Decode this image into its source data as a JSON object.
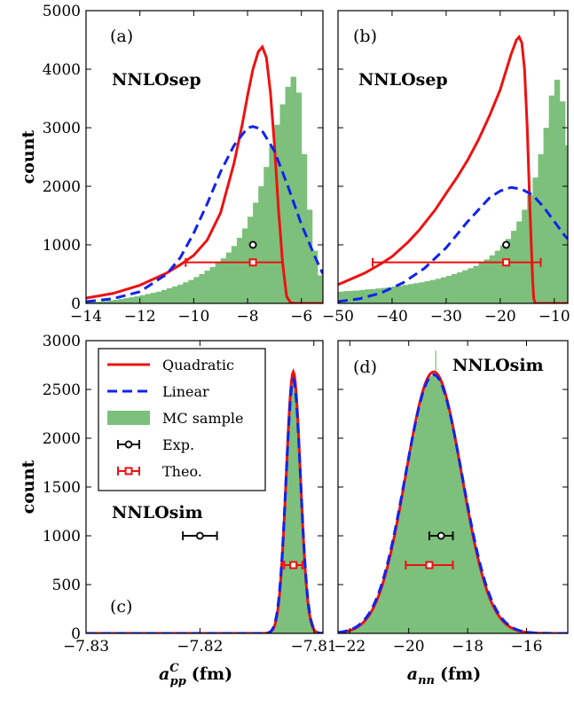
{
  "chart_data": [
    {
      "panel": "(a)",
      "type": "histogram",
      "annotation": "NNLOsep",
      "xlim": [
        -14,
        -5.2
      ],
      "ylim": [
        0,
        5000
      ],
      "xticks": [
        -14,
        -12,
        -10,
        -8,
        -6
      ],
      "xtick_labels": [
        "−14",
        "−12",
        "−10",
        "−8",
        "−6"
      ],
      "yticks": [
        0,
        1000,
        2000,
        3000,
        4000,
        5000
      ],
      "ytick_labels": [
        "0",
        "1000",
        "2000",
        "3000",
        "4000",
        "5000"
      ],
      "ylabel": "count",
      "histogram": {
        "bins_start": -14,
        "bin_width": 0.2,
        "counts": [
          15,
          25,
          30,
          40,
          50,
          60,
          75,
          90,
          105,
          120,
          140,
          160,
          180,
          200,
          230,
          260,
          290,
          320,
          360,
          400,
          450,
          500,
          560,
          620,
          690,
          770,
          870,
          980,
          1120,
          1280,
          1480,
          1720,
          2000,
          2330,
          2680,
          3050,
          3400,
          3700,
          3870,
          3600,
          2550,
          1600,
          900,
          480,
          250,
          110,
          50,
          20
        ]
      },
      "quadratic": {
        "x": [
          -14,
          -13,
          -12,
          -11,
          -10.5,
          -10,
          -9.5,
          -9,
          -8.5,
          -8.2,
          -8,
          -7.8,
          -7.6,
          -7.45,
          -7.3,
          -7.15,
          -7.0,
          -6.85,
          -6.7,
          -6.55,
          -6.4,
          -6.2,
          -5.2
        ],
        "y": [
          90,
          170,
          310,
          520,
          660,
          820,
          1080,
          1550,
          2400,
          3050,
          3550,
          4000,
          4300,
          4380,
          4200,
          3600,
          2700,
          1600,
          700,
          120,
          10,
          0,
          0
        ]
      },
      "linear": {
        "x": [
          -14,
          -13,
          -12,
          -11,
          -10.5,
          -10,
          -9.5,
          -9,
          -8.5,
          -8,
          -7.8,
          -7.5,
          -7,
          -6.5,
          -6,
          -5.5,
          -5.2
        ],
        "y": [
          30,
          80,
          200,
          500,
          780,
          1200,
          1700,
          2250,
          2700,
          3000,
          3020,
          2980,
          2600,
          2000,
          1350,
          800,
          500
        ]
      },
      "exp": {
        "x": -7.8,
        "y": 1000,
        "xerr": 0
      },
      "theo": {
        "x": -7.8,
        "y": 700,
        "xlo": -10.3,
        "xhi": -6.7
      }
    },
    {
      "panel": "(b)",
      "type": "histogram",
      "annotation": "NNLOsep",
      "xlim": [
        -50,
        -7.5
      ],
      "ylim": [
        0,
        5000
      ],
      "xticks": [
        -50,
        -40,
        -30,
        -20,
        -10
      ],
      "xtick_labels": [
        "−50",
        "−40",
        "−30",
        "−20",
        "−10"
      ],
      "yticks": [
        0,
        1000,
        2000,
        3000,
        4000,
        5000
      ],
      "histogram": {
        "bins_start": -50,
        "bin_width": 1,
        "counts": [
          200,
          210,
          215,
          220,
          230,
          240,
          245,
          255,
          265,
          275,
          290,
          300,
          315,
          330,
          345,
          360,
          380,
          400,
          420,
          445,
          470,
          500,
          530,
          565,
          600,
          640,
          690,
          750,
          820,
          900,
          990,
          1100,
          1240,
          1400,
          1600,
          1850,
          2150,
          2550,
          3000,
          3550,
          3820,
          3450,
          2700,
          1700,
          800,
          300
        ]
      },
      "quadratic": {
        "x": [
          -50,
          -48,
          -45,
          -42,
          -40,
          -37,
          -35,
          -32,
          -30,
          -28,
          -26,
          -24,
          -22,
          -20,
          -19,
          -18,
          -17,
          -16.5,
          -16,
          -15.5,
          -15,
          -14.5,
          -14,
          -13.8,
          -13.5,
          -7.5
        ],
        "y": [
          320,
          400,
          520,
          680,
          800,
          1050,
          1250,
          1600,
          1880,
          2150,
          2450,
          2800,
          3200,
          3650,
          3950,
          4250,
          4500,
          4550,
          4450,
          4000,
          3000,
          1600,
          400,
          80,
          0,
          0
        ]
      },
      "linear": {
        "x": [
          -50,
          -46,
          -42,
          -38,
          -34,
          -30,
          -26,
          -22,
          -20,
          -18,
          -16,
          -14,
          -12,
          -10,
          -8,
          -7.5
        ],
        "y": [
          30,
          80,
          180,
          350,
          600,
          950,
          1400,
          1800,
          1920,
          1980,
          1950,
          1850,
          1650,
          1400,
          1150,
          1100
        ]
      },
      "exp": {
        "x": -18.9,
        "y": 1000,
        "xerr": 0
      },
      "theo": {
        "x": -18.9,
        "y": 700,
        "xlo": -43.6,
        "xhi": -12.5
      }
    },
    {
      "panel": "(c)",
      "type": "histogram",
      "annotation": "NNLOsim",
      "xlim": [
        -7.83,
        -7.8092
      ],
      "ylim": [
        0,
        3000
      ],
      "xticks": [
        -7.83,
        -7.82,
        -7.81
      ],
      "xtick_labels": [
        "−7.83",
        "−7.82",
        "−7.81"
      ],
      "yticks": [
        0,
        500,
        1000,
        1500,
        2000,
        2500,
        3000
      ],
      "ytick_labels": [
        "0",
        "500",
        "1000",
        "1500",
        "2000",
        "2500",
        "3000"
      ],
      "ylabel": "count",
      "xlabel_main": "a",
      "xlabel_sub": "pp",
      "xlabel_sup": "C",
      "xlabel_unit": "(fm)",
      "histogram": {
        "type": "gaussian",
        "mu": -7.8118,
        "sigma": 0.00062,
        "peak": 2640,
        "bins_start": -7.8142,
        "bin_width": 0.0001,
        "n_bins": 48
      },
      "quadratic": {
        "type": "gaussian",
        "mu": -7.8118,
        "sigma": 0.00062,
        "peak": 2680
      },
      "linear": {
        "type": "gaussian",
        "mu": -7.8118,
        "sigma": 0.00064,
        "peak": 2600
      },
      "exp": {
        "x": -7.82,
        "y": 1000,
        "xlo": -7.8215,
        "xhi": -7.8185
      },
      "theo": {
        "x": -7.8118,
        "y": 700,
        "xlo": -7.8126,
        "xhi": -7.811
      },
      "legend": {
        "position": "upper-left",
        "entries": [
          {
            "label": "Quadratic",
            "style": "solid-red"
          },
          {
            "label": "Linear",
            "style": "dashed-blue"
          },
          {
            "label": "MC sample",
            "style": "green-patch"
          },
          {
            "label": "Exp.",
            "style": "black-circle-errorbar"
          },
          {
            "label": "Theo.",
            "style": "red-square-errorbar"
          }
        ]
      }
    },
    {
      "panel": "(d)",
      "type": "histogram",
      "annotation": "NNLOsim",
      "xlim": [
        -22.4,
        -14.6
      ],
      "ylim": [
        0,
        3000
      ],
      "xticks": [
        -22,
        -20,
        -18,
        -16
      ],
      "xtick_labels": [
        "−22",
        "−20",
        "−18",
        "−16"
      ],
      "yticks": [
        0,
        500,
        1000,
        1500,
        2000,
        2500,
        3000
      ],
      "xlabel_main": "a",
      "xlabel_sub": "nn",
      "xlabel_unit": "(fm)",
      "histogram": {
        "type": "gaussian",
        "mu": -19.15,
        "sigma": 0.95,
        "peak": 2650,
        "bins_start": -23,
        "bin_width": 0.1,
        "n_bins": 80,
        "spike_x": -19.1,
        "spike_y": 2900
      },
      "quadratic": {
        "type": "gaussian",
        "mu": -19.15,
        "sigma": 0.95,
        "peak": 2680
      },
      "linear": {
        "type": "gaussian",
        "mu": -19.15,
        "sigma": 0.97,
        "peak": 2650
      },
      "exp": {
        "x": -18.9,
        "y": 1000,
        "xlo": -19.3,
        "xhi": -18.5
      },
      "theo": {
        "x": -19.3,
        "y": 700,
        "xlo": -20.1,
        "xhi": -18.5
      }
    }
  ],
  "colors": {
    "quadratic": "#ee1111",
    "linear": "#1122ee",
    "mc_sample": "#7cc07c",
    "exp": "#111111",
    "theo": "#ee1111"
  }
}
